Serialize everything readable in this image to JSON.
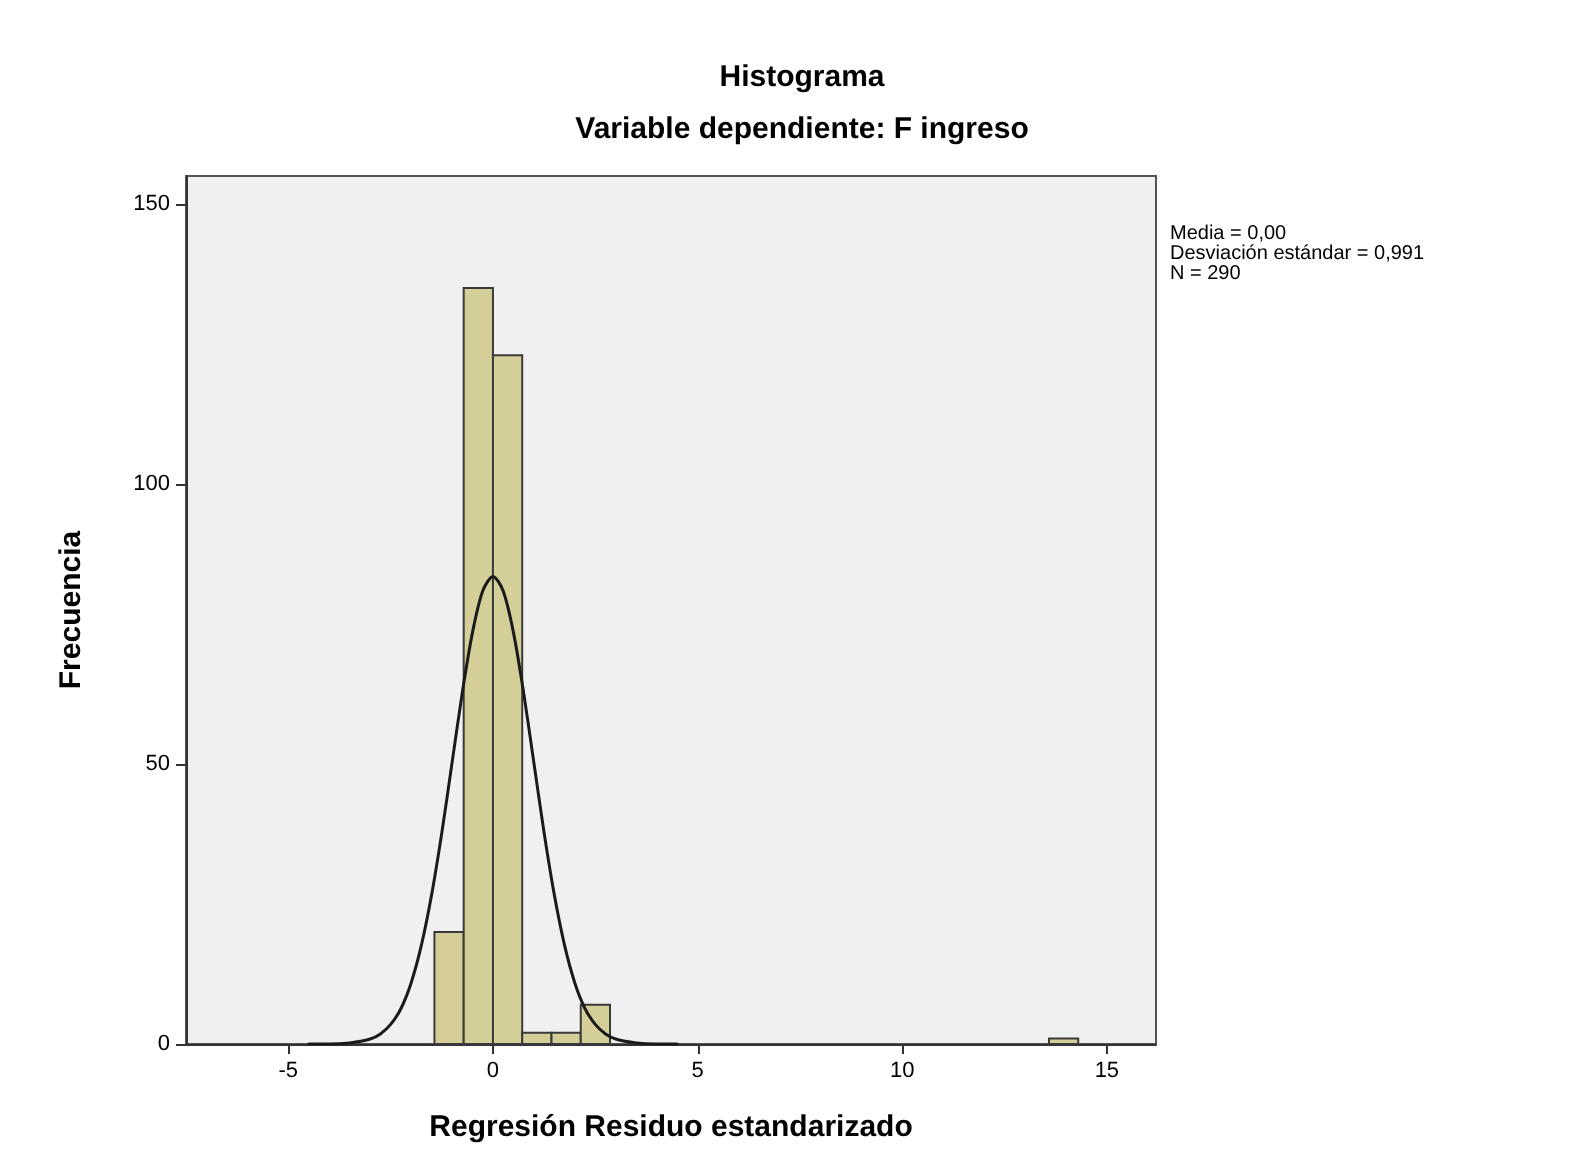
{
  "chart_data": {
    "type": "histogram",
    "title": "Histograma",
    "subtitle": "Variable dependiente: F ingreso",
    "xlabel": "Regresión Residuo estandarizado",
    "ylabel": "Frecuencia",
    "bins": [
      -1.43,
      -0.715,
      0,
      0.715,
      1.43,
      2.145,
      2.86,
      3.575,
      4.29,
      5.005,
      5.72,
      6.435,
      7.15,
      7.865,
      8.58,
      9.295,
      10.01,
      10.725,
      11.44,
      12.155,
      12.87,
      13.585,
      14.3
    ],
    "values": [
      20,
      135,
      123,
      2,
      2,
      7,
      0,
      0,
      0,
      0,
      0,
      0,
      0,
      0,
      0,
      0,
      0,
      0,
      0,
      0,
      0,
      1
    ],
    "color": "#d4cf98",
    "series": [
      {
        "type": "line",
        "color": "#1a1a1a",
        "x": [
          -4.5,
          -4,
          -3.5,
          -3,
          -2.75,
          -2.5,
          -2.25,
          -2,
          -1.75,
          -1.5,
          -1.25,
          -1,
          -0.75,
          -0.5,
          -0.25,
          0,
          0.25,
          0.5,
          0.75,
          1,
          1.25,
          1.5,
          1.75,
          2,
          2.25,
          2.5,
          2.75,
          3,
          3.5,
          4,
          4.5
        ],
        "values": [
          0,
          0,
          0.2,
          0.9,
          1.8,
          3.5,
          6.3,
          10.9,
          17.6,
          26.6,
          37.7,
          50.2,
          62.7,
          73.5,
          80.9,
          83.5,
          80.9,
          73.5,
          62.7,
          50.2,
          37.7,
          26.6,
          17.6,
          10.9,
          6.3,
          3.5,
          1.8,
          0.9,
          0.2,
          0,
          0
        ]
      }
    ],
    "annotations": [
      "Media = 0,00",
      "Desviación estándar = 0,991",
      "N = 290"
    ],
    "xlim": [
      -7.5,
      16.2
    ],
    "xticks": [
      -5,
      0,
      5,
      10,
      15
    ],
    "ylim": [
      0,
      155
    ],
    "yticks": [
      0,
      50,
      100,
      150
    ],
    "grid": false,
    "marker": "none",
    "line_style": "solid"
  }
}
